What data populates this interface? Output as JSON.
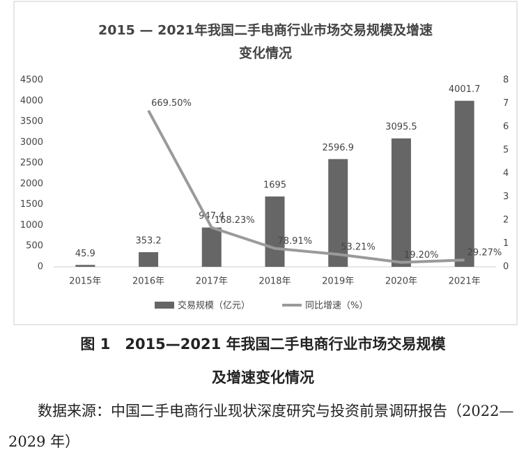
{
  "chart_data": {
    "type": "bar-line",
    "title": [
      "2015 — 2021年我国二手电商行业市场交易规模及增速",
      "变化情况"
    ],
    "categories": [
      "2015年",
      "2016年",
      "2017年",
      "2018年",
      "2019年",
      "2020年",
      "2021年"
    ],
    "series": [
      {
        "name": "交易规模（亿元）",
        "type": "bar",
        "color": "#666666",
        "values": [
          45.9,
          353.2,
          947.4,
          1695,
          2596.9,
          3095.5,
          4001.7
        ]
      },
      {
        "name": "同比增速（%）",
        "type": "line",
        "axis": "y2",
        "color": "#9a9a9a",
        "values": [
          null,
          6.695,
          1.6823,
          0.7891,
          0.5321,
          0.192,
          0.2927
        ],
        "value_labels": [
          null,
          "669.50%",
          "168.23%",
          "78.91%",
          "53.21%",
          "19.20%",
          "29.27%"
        ]
      }
    ],
    "ylim": [
      0,
      4500
    ],
    "yticks": [
      0,
      500,
      1000,
      1500,
      2000,
      2500,
      3000,
      3500,
      4000,
      4500
    ],
    "y2lim": [
      0,
      8
    ],
    "y2ticks": [
      0,
      1,
      2,
      3,
      4,
      5,
      6,
      7,
      8
    ],
    "legend": "bottom"
  },
  "caption": [
    "图 1　2015—2021 年我国二手电商行业市场交易规模",
    "及增速变化情况"
  ],
  "source": "数据来源：中国二手电商行业现状深度研究与投资前景调研报告（2022—2029 年）"
}
